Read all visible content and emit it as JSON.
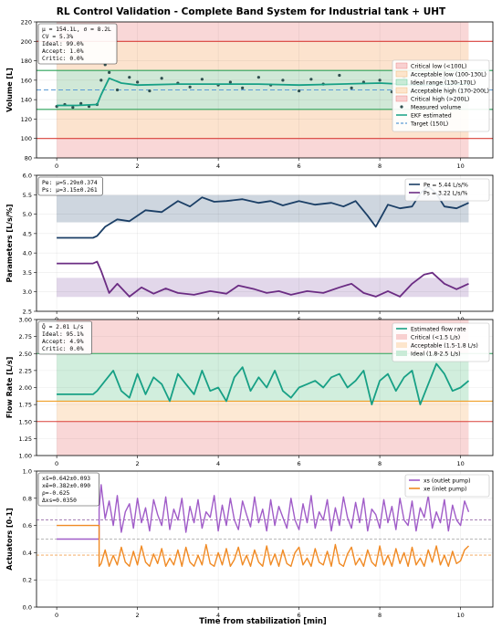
{
  "figure": {
    "title": "RL Control Validation - Complete Band System for Industrial tank + UHT",
    "xlabel": "Time from stabilization [min]",
    "xticks": [
      "0",
      "2",
      "4",
      "6",
      "8",
      "10"
    ]
  },
  "colors": {
    "red_band": "#f8d0d0",
    "orange_band": "#fde5cc",
    "green_band": "#c9ebd7",
    "red_line": "#d9413a",
    "orange_line": "#f0a12a",
    "green_line": "#2ca35a",
    "teal": "#17a085",
    "navy": "#1b3f66",
    "purple": "#6b2c83",
    "violet": "#a05cc8",
    "orange": "#f08a24",
    "blue_dash": "#5b9bd5",
    "scatter": "#2f4f4f"
  },
  "chart_data": [
    {
      "id": "volume",
      "type": "line",
      "ylabel": "Volume [L]",
      "xlim": [
        -0.5,
        10.8
      ],
      "ylim": [
        80,
        220
      ],
      "yticks": [
        "80",
        "100",
        "120",
        "140",
        "160",
        "180",
        "200",
        "220"
      ],
      "bands": [
        {
          "from": 80,
          "to": 200,
          "kind": "red"
        },
        {
          "from": 100,
          "to": 130,
          "kind": "orange"
        },
        {
          "from": 130,
          "to": 170,
          "kind": "green"
        },
        {
          "from": 170,
          "to": 200,
          "kind": "orange"
        },
        {
          "from": 200,
          "to": 220,
          "kind": "red"
        }
      ],
      "hlines": [
        100,
        130,
        170,
        200
      ],
      "target": 150,
      "stats": [
        "μ = 154.1L, σ = 8.2L",
        "CV = 5.3%",
        "Ideal: 99.0%",
        "Accept: 1.0%",
        "Critic: 0.0%"
      ],
      "legend": [
        "Critical low (<100L)",
        "Acceptable low (100-130L)",
        "Ideal range (130-170L)",
        "Acceptable high (170-200L)",
        "Critical high (>200L)",
        "Measured volume",
        "EKF estimated",
        "Target (150L)"
      ],
      "series": {
        "ekf": {
          "x": [
            0,
            0.5,
            1.0,
            1.1,
            1.3,
            1.6,
            2,
            3,
            4,
            5,
            6,
            7,
            8,
            9,
            10,
            10.2
          ],
          "y": [
            134,
            134,
            135,
            145,
            162,
            157,
            155,
            156,
            156,
            156,
            155,
            156,
            157,
            155,
            156,
            156
          ]
        },
        "measured": {
          "x": [
            0,
            0.2,
            0.4,
            0.6,
            0.8,
            1.0,
            1.1,
            1.2,
            1.3,
            1.5,
            1.8,
            2.0,
            2.3,
            2.6,
            3.0,
            3.3,
            3.6,
            4.0,
            4.3,
            4.6,
            5.0,
            5.3,
            5.6,
            6.0,
            6.3,
            6.6,
            7.0,
            7.3,
            7.6,
            8.0,
            8.3,
            8.6,
            9.0,
            9.3,
            9.6,
            10.0,
            10.2
          ],
          "y": [
            133,
            135,
            132,
            136,
            133,
            135,
            160,
            176,
            168,
            150,
            163,
            158,
            149,
            162,
            157,
            153,
            161,
            155,
            158,
            152,
            163,
            155,
            160,
            149,
            161,
            156,
            165,
            152,
            158,
            160,
            148,
            163,
            157,
            150,
            162,
            157,
            155
          ]
        }
      }
    },
    {
      "id": "parameters",
      "type": "line",
      "ylabel": "Parameters [L/s/%]",
      "xlim": [
        -0.5,
        10.8
      ],
      "ylim": [
        2.5,
        6.2
      ],
      "yticks": [
        "2.5",
        "3.0",
        "3.5",
        "4.0",
        "4.5",
        "5.0",
        "5.5",
        "6.0"
      ],
      "bands": [
        {
          "from": 4.92,
          "to": 5.66,
          "kind": "pe"
        },
        {
          "from": 2.89,
          "to": 3.41,
          "kind": "ps"
        }
      ],
      "stats": [
        "Pe: μ=5.29±0.374",
        "Ps: μ=3.15±0.261"
      ],
      "legend": [
        "Pe = 5.44 L/s/%",
        "Ps = 3.22 L/s/%"
      ],
      "series": {
        "pe": {
          "x": [
            0,
            0.9,
            1.0,
            1.2,
            1.5,
            1.8,
            2.2,
            2.6,
            3.0,
            3.3,
            3.6,
            3.9,
            4.2,
            4.6,
            5.0,
            5.3,
            5.6,
            6.0,
            6.4,
            6.8,
            7.1,
            7.4,
            7.7,
            7.9,
            8.2,
            8.5,
            8.8,
            9.0,
            9.2,
            9.4,
            9.6,
            9.9,
            10.2
          ],
          "y": [
            4.5,
            4.5,
            4.55,
            4.8,
            5.0,
            4.95,
            5.25,
            5.2,
            5.5,
            5.35,
            5.6,
            5.48,
            5.5,
            5.55,
            5.45,
            5.5,
            5.38,
            5.5,
            5.4,
            5.45,
            5.35,
            5.5,
            5.1,
            4.8,
            5.4,
            5.3,
            5.35,
            5.7,
            5.9,
            5.7,
            5.35,
            5.3,
            5.45
          ]
        },
        "ps": {
          "x": [
            0,
            0.9,
            1.0,
            1.1,
            1.3,
            1.5,
            1.8,
            2.1,
            2.4,
            2.7,
            3.0,
            3.4,
            3.8,
            4.2,
            4.5,
            4.9,
            5.2,
            5.5,
            5.8,
            6.2,
            6.6,
            7.0,
            7.3,
            7.6,
            7.9,
            8.2,
            8.5,
            8.8,
            9.1,
            9.3,
            9.6,
            9.9,
            10.2
          ],
          "y": [
            3.8,
            3.8,
            3.85,
            3.6,
            3.0,
            3.25,
            2.9,
            3.15,
            2.98,
            3.12,
            3.0,
            2.95,
            3.05,
            2.98,
            3.2,
            3.1,
            3.0,
            3.05,
            2.95,
            3.05,
            3.0,
            3.15,
            3.25,
            3.0,
            2.9,
            3.05,
            2.9,
            3.25,
            3.5,
            3.55,
            3.25,
            3.1,
            3.25
          ]
        }
      }
    },
    {
      "id": "flow",
      "type": "line",
      "ylabel": "Flow Rate [L/s]",
      "xlim": [
        -0.5,
        10.8
      ],
      "ylim": [
        1.0,
        3.0
      ],
      "yticks": [
        "1.00",
        "1.25",
        "1.50",
        "1.75",
        "2.00",
        "2.25",
        "2.50",
        "2.75",
        "3.00"
      ],
      "bands": [
        {
          "from": 1.0,
          "to": 1.5,
          "kind": "red"
        },
        {
          "from": 1.5,
          "to": 1.8,
          "kind": "orange"
        },
        {
          "from": 1.8,
          "to": 2.5,
          "kind": "green"
        },
        {
          "from": 2.5,
          "to": 3.0,
          "kind": "red"
        }
      ],
      "hlines": [
        1.5,
        1.8,
        2.5
      ],
      "stats": [
        "Q̄ = 2.01 L/s",
        "Ideal: 95.1%",
        "Accept: 4.9%",
        "Critic: 0.0%"
      ],
      "legend": [
        "Estimated flow rate",
        "Critical (<1.5 L/s)",
        "Acceptable (1.5-1.8 L/s)",
        "Ideal (1.8-2.5 L/s)"
      ],
      "series": {
        "flow": {
          "x": [
            0,
            0.9,
            1.0,
            1.2,
            1.4,
            1.6,
            1.8,
            2.0,
            2.2,
            2.4,
            2.6,
            2.8,
            3.0,
            3.2,
            3.4,
            3.6,
            3.8,
            4.0,
            4.2,
            4.4,
            4.6,
            4.8,
            5.0,
            5.2,
            5.4,
            5.6,
            5.8,
            6.0,
            6.2,
            6.4,
            6.6,
            6.8,
            7.0,
            7.2,
            7.4,
            7.6,
            7.8,
            8.0,
            8.2,
            8.4,
            8.6,
            8.8,
            9.0,
            9.2,
            9.4,
            9.6,
            9.8,
            10.0,
            10.2
          ],
          "y": [
            1.9,
            1.9,
            1.95,
            2.1,
            2.25,
            1.95,
            1.85,
            2.2,
            1.9,
            2.15,
            2.05,
            1.8,
            2.2,
            2.05,
            1.9,
            2.25,
            1.95,
            2.0,
            1.8,
            2.15,
            2.3,
            1.95,
            2.15,
            2.0,
            2.25,
            1.95,
            1.85,
            2.0,
            2.05,
            2.1,
            2.0,
            2.15,
            2.2,
            2.0,
            2.1,
            2.25,
            1.75,
            2.1,
            2.2,
            1.95,
            2.15,
            2.25,
            1.75,
            2.05,
            2.35,
            2.2,
            1.95,
            2.0,
            2.1
          ]
        }
      }
    },
    {
      "id": "actuators",
      "type": "line",
      "ylabel": "Actuators [0-1]",
      "xlim": [
        -0.5,
        10.8
      ],
      "ylim": [
        0,
        1.0
      ],
      "yticks": [
        "0.0",
        "0.2",
        "0.4",
        "0.6",
        "0.8",
        "1.0"
      ],
      "hlines_dashed": [
        {
          "y": 0.642,
          "kind": "xs"
        },
        {
          "y": 0.382,
          "kind": "xe"
        },
        {
          "y": 0.5,
          "kind": "ref"
        }
      ],
      "stats": [
        "xs̄=0.642±0.093",
        "xē=0.382±0.090",
        "ρ=-0.625",
        "Δxs=0.0350"
      ],
      "legend": [
        "xs (outlet pump)",
        "xe (inlet pump)"
      ],
      "series": {
        "xs": {
          "x": [
            0,
            1.05,
            1.05,
            1.1,
            1.2,
            1.3,
            1.4,
            1.5,
            1.6,
            1.7,
            1.8,
            1.9,
            2.0,
            2.1,
            2.2,
            2.3,
            2.4,
            2.5,
            2.6,
            2.7,
            2.8,
            2.9,
            3.0,
            3.1,
            3.2,
            3.3,
            3.4,
            3.5,
            3.6,
            3.7,
            3.8,
            3.9,
            4.0,
            4.1,
            4.2,
            4.3,
            4.4,
            4.5,
            4.6,
            4.7,
            4.8,
            4.9,
            5.0,
            5.1,
            5.2,
            5.3,
            5.4,
            5.5,
            5.6,
            5.7,
            5.8,
            5.9,
            6.0,
            6.1,
            6.2,
            6.3,
            6.4,
            6.5,
            6.6,
            6.7,
            6.8,
            6.9,
            7.0,
            7.1,
            7.2,
            7.3,
            7.4,
            7.5,
            7.6,
            7.7,
            7.8,
            7.9,
            8.0,
            8.1,
            8.2,
            8.3,
            8.4,
            8.5,
            8.6,
            8.7,
            8.8,
            8.9,
            9.0,
            9.1,
            9.2,
            9.3,
            9.4,
            9.5,
            9.6,
            9.7,
            9.8,
            9.9,
            10.0,
            10.1,
            10.2
          ],
          "y": [
            0.5,
            0.5,
            0.72,
            0.9,
            0.65,
            0.78,
            0.6,
            0.82,
            0.55,
            0.7,
            0.76,
            0.58,
            0.8,
            0.62,
            0.73,
            0.56,
            0.79,
            0.68,
            0.6,
            0.81,
            0.57,
            0.72,
            0.64,
            0.8,
            0.55,
            0.74,
            0.62,
            0.79,
            0.58,
            0.7,
            0.66,
            0.82,
            0.56,
            0.75,
            0.6,
            0.8,
            0.64,
            0.57,
            0.78,
            0.68,
            0.59,
            0.81,
            0.62,
            0.72,
            0.56,
            0.79,
            0.6,
            0.74,
            0.66,
            0.58,
            0.8,
            0.64,
            0.57,
            0.76,
            0.62,
            0.82,
            0.58,
            0.7,
            0.64,
            0.79,
            0.56,
            0.73,
            0.6,
            0.81,
            0.66,
            0.58,
            0.77,
            0.62,
            0.8,
            0.56,
            0.72,
            0.68,
            0.58,
            0.79,
            0.62,
            0.74,
            0.57,
            0.8,
            0.64,
            0.6,
            0.78,
            0.56,
            0.73,
            0.66,
            0.82,
            0.58,
            0.7,
            0.62,
            0.79,
            0.56,
            0.75,
            0.64,
            0.6,
            0.78,
            0.7
          ]
        },
        "xe": {
          "x": [
            0,
            1.05,
            1.05,
            1.1,
            1.2,
            1.3,
            1.4,
            1.5,
            1.6,
            1.7,
            1.8,
            1.9,
            2.0,
            2.1,
            2.2,
            2.3,
            2.4,
            2.5,
            2.6,
            2.7,
            2.8,
            2.9,
            3.0,
            3.1,
            3.2,
            3.3,
            3.4,
            3.5,
            3.6,
            3.7,
            3.8,
            3.9,
            4.0,
            4.1,
            4.2,
            4.3,
            4.4,
            4.5,
            4.6,
            4.7,
            4.8,
            4.9,
            5.0,
            5.1,
            5.2,
            5.3,
            5.4,
            5.5,
            5.6,
            5.7,
            5.8,
            5.9,
            6.0,
            6.1,
            6.2,
            6.3,
            6.4,
            6.5,
            6.6,
            6.7,
            6.8,
            6.9,
            7.0,
            7.1,
            7.2,
            7.3,
            7.4,
            7.5,
            7.6,
            7.7,
            7.8,
            7.9,
            8.0,
            8.1,
            8.2,
            8.3,
            8.4,
            8.5,
            8.6,
            8.7,
            8.8,
            8.9,
            9.0,
            9.1,
            9.2,
            9.3,
            9.4,
            9.5,
            9.6,
            9.7,
            9.8,
            9.9,
            10.0,
            10.1,
            10.2
          ],
          "y": [
            0.6,
            0.6,
            0.3,
            0.32,
            0.42,
            0.3,
            0.38,
            0.31,
            0.44,
            0.33,
            0.3,
            0.41,
            0.31,
            0.45,
            0.33,
            0.3,
            0.39,
            0.32,
            0.43,
            0.3,
            0.36,
            0.31,
            0.42,
            0.3,
            0.44,
            0.33,
            0.3,
            0.38,
            0.31,
            0.46,
            0.32,
            0.3,
            0.4,
            0.31,
            0.43,
            0.3,
            0.35,
            0.44,
            0.31,
            0.38,
            0.3,
            0.42,
            0.33,
            0.3,
            0.45,
            0.31,
            0.39,
            0.3,
            0.42,
            0.32,
            0.3,
            0.4,
            0.44,
            0.31,
            0.36,
            0.3,
            0.43,
            0.33,
            0.31,
            0.41,
            0.3,
            0.46,
            0.32,
            0.3,
            0.39,
            0.44,
            0.31,
            0.36,
            0.3,
            0.42,
            0.33,
            0.3,
            0.45,
            0.31,
            0.38,
            0.3,
            0.43,
            0.32,
            0.4,
            0.3,
            0.44,
            0.31,
            0.36,
            0.3,
            0.42,
            0.33,
            0.45,
            0.31,
            0.38,
            0.3,
            0.41,
            0.32,
            0.34,
            0.42,
            0.45
          ]
        }
      }
    }
  ]
}
